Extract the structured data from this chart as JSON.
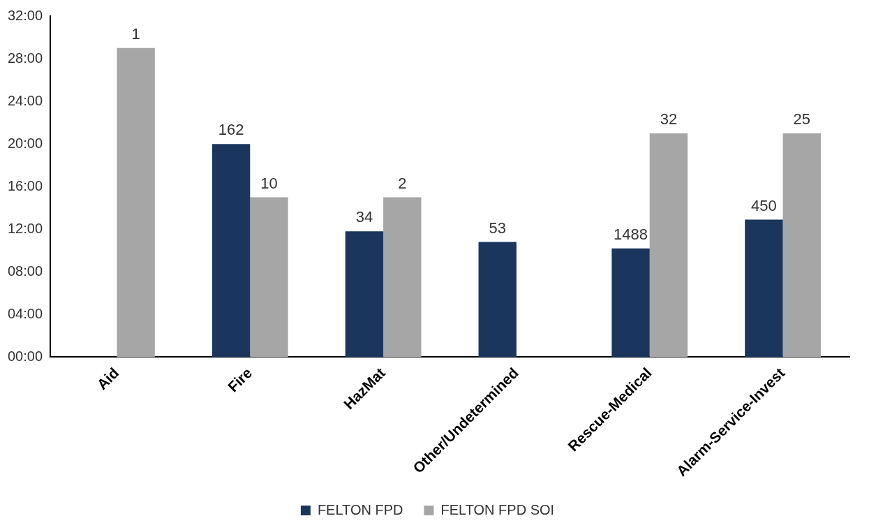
{
  "chart_data": {
    "type": "bar",
    "categories": [
      "Aid",
      "Fire",
      "HazMat",
      "Other/Undetermined",
      "Rescue-Medical",
      "Alarm-Service-Invest"
    ],
    "series": [
      {
        "name": "FELTON FPD",
        "color": "#1b365d",
        "values": [
          null,
          20,
          11.8,
          10.8,
          10.2,
          12.9
        ]
      },
      {
        "name": "FELTON FPD SOI",
        "color": "#a6a6a6",
        "values": [
          29,
          15,
          15,
          null,
          21,
          21
        ]
      }
    ],
    "annotations": [
      {
        "text": "1",
        "x": "Aid",
        "y": 29
      },
      {
        "text": "162",
        "x": "Fire",
        "y": 20
      },
      {
        "text": "10",
        "x": "Fire",
        "y": 15
      },
      {
        "text": "34",
        "x": "HazMat",
        "y": 11.8
      },
      {
        "text": "2",
        "x": "HazMat",
        "y": 15
      },
      {
        "text": "53",
        "x": "Other/Undetermined",
        "y": 10.8
      },
      {
        "text": "1488",
        "x": "Rescue-Medical",
        "y": 10.2
      },
      {
        "text": "32",
        "x": "Rescue-Medical",
        "y": 21
      },
      {
        "text": "450",
        "x": "Alarm-Service-Invest",
        "y": 12.9
      },
      {
        "text": "25",
        "x": "Alarm-Service-Invest",
        "y": 21
      }
    ],
    "ylim": [
      0,
      32
    ],
    "yticks": [
      {
        "value": 0,
        "label": "00:00"
      },
      {
        "value": 4,
        "label": "04:00"
      },
      {
        "value": 8,
        "label": "08:00"
      },
      {
        "value": 12,
        "label": "12:00"
      },
      {
        "value": 16,
        "label": "16:00"
      },
      {
        "value": 20,
        "label": "20:00"
      },
      {
        "value": 24,
        "label": "24:00"
      },
      {
        "value": 28,
        "label": "28:00"
      },
      {
        "value": 32,
        "label": "32:00"
      }
    ],
    "grid": false,
    "legend": "bottom"
  }
}
